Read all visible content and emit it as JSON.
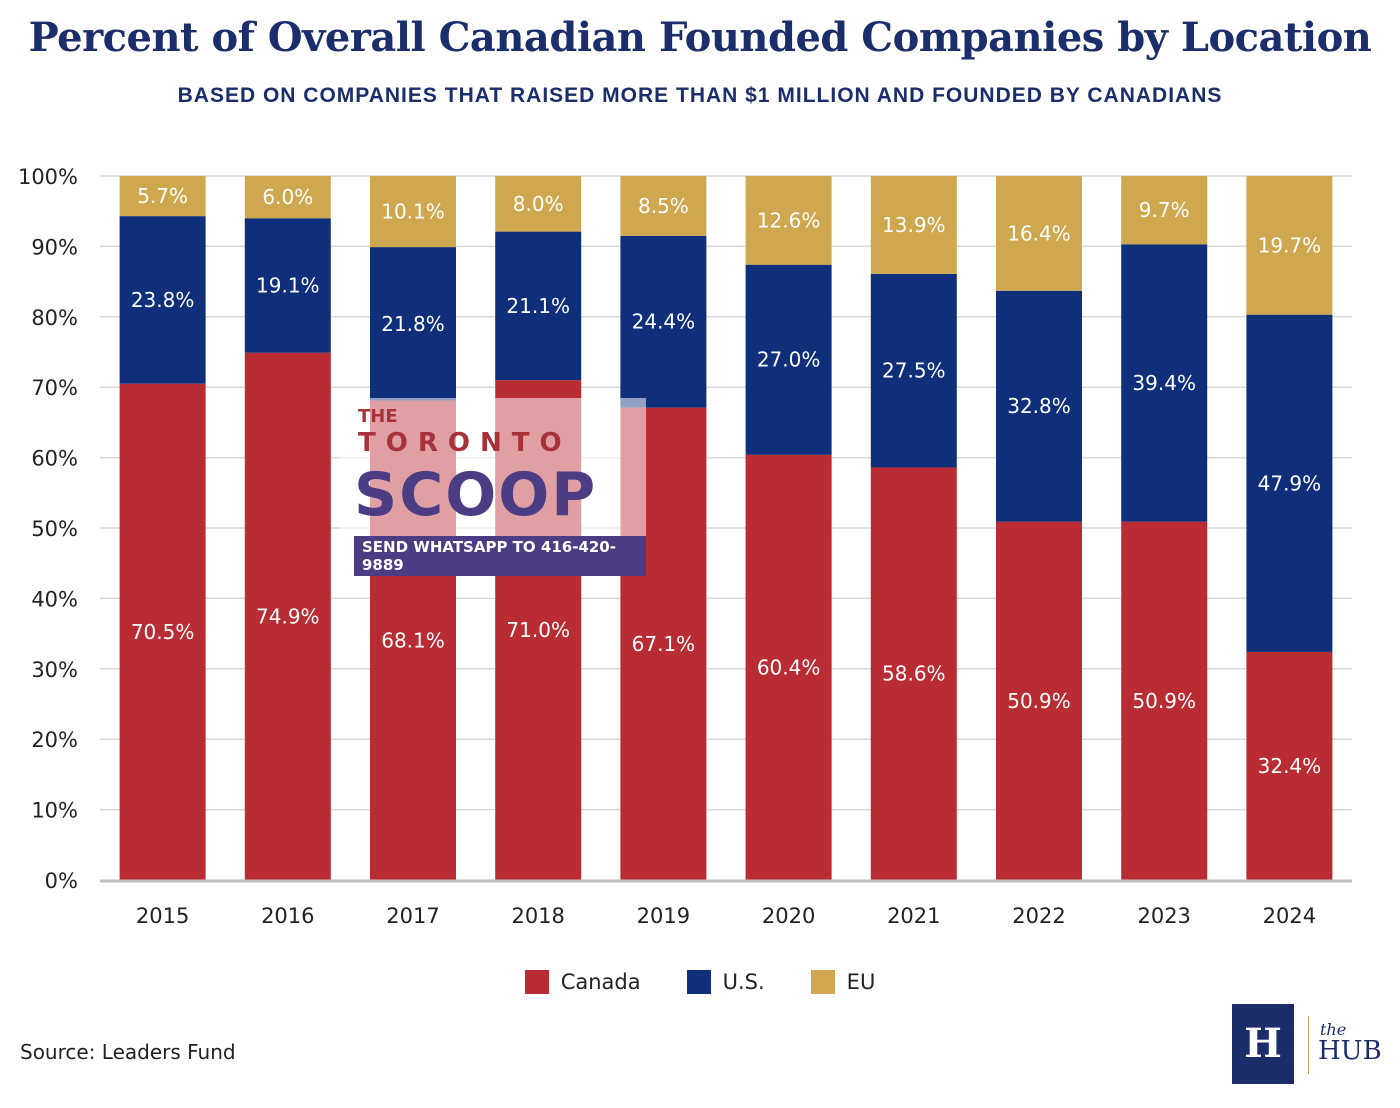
{
  "chart_data": {
    "type": "bar",
    "stacked": true,
    "title": "Percent of Overall Canadian Founded Companies by Location",
    "subtitle": "BASED ON COMPANIES THAT RAISED MORE THAN $1 MILLION AND FOUNDED BY CANADIANS",
    "categories": [
      "2015",
      "2016",
      "2017",
      "2018",
      "2019",
      "2020",
      "2021",
      "2022",
      "2023",
      "2024"
    ],
    "series": [
      {
        "name": "Canada",
        "color": "#b92c33",
        "values": [
          70.5,
          74.9,
          68.1,
          71.0,
          67.1,
          60.4,
          58.6,
          50.9,
          50.9,
          32.4
        ]
      },
      {
        "name": "U.S.",
        "color": "#0f2f7a",
        "values": [
          23.8,
          19.1,
          21.8,
          21.1,
          24.4,
          27.0,
          27.5,
          32.8,
          39.4,
          47.9
        ]
      },
      {
        "name": "EU",
        "color": "#cfa74f",
        "values": [
          5.7,
          6.0,
          10.1,
          8.0,
          8.5,
          12.6,
          13.9,
          16.4,
          9.7,
          19.7
        ]
      }
    ],
    "value_labels": [
      [
        "70.5%",
        "74.9%",
        "68.1%",
        "71.0%",
        "67.1%",
        "60.4%",
        "58.6%",
        "50.9%",
        "50.9%",
        "32.4%"
      ],
      [
        "23.8%",
        "19.1%",
        "21.8%",
        "21.1%",
        "24.4%",
        "27.0%",
        "27.5%",
        "32.8%",
        "39.4%",
        "47.9%"
      ],
      [
        "5.7%",
        "6.0%",
        "10.1%",
        "8.0%",
        "8.5%",
        "12.6%",
        "13.9%",
        "16.4%",
        "9.7%",
        "19.7%"
      ]
    ],
    "yticks": [
      "0%",
      "10%",
      "20%",
      "30%",
      "40%",
      "50%",
      "60%",
      "70%",
      "80%",
      "90%",
      "100%"
    ],
    "ylim": [
      0,
      100
    ],
    "grid": true,
    "legend_position": "bottom-center"
  },
  "source": "Source: Leaders Fund",
  "watermark": {
    "the": "THE",
    "toronto": "TORONTO",
    "scoop": "SCOOP",
    "ribbon": "SEND WHATSAPP TO 416-420-9889"
  },
  "logo": {
    "mark": "H",
    "the": "the",
    "hub": "HUB"
  },
  "colors": {
    "title": "#1b2d6b",
    "grid": "#d9d9d9",
    "axis": "#bfbfbf"
  }
}
